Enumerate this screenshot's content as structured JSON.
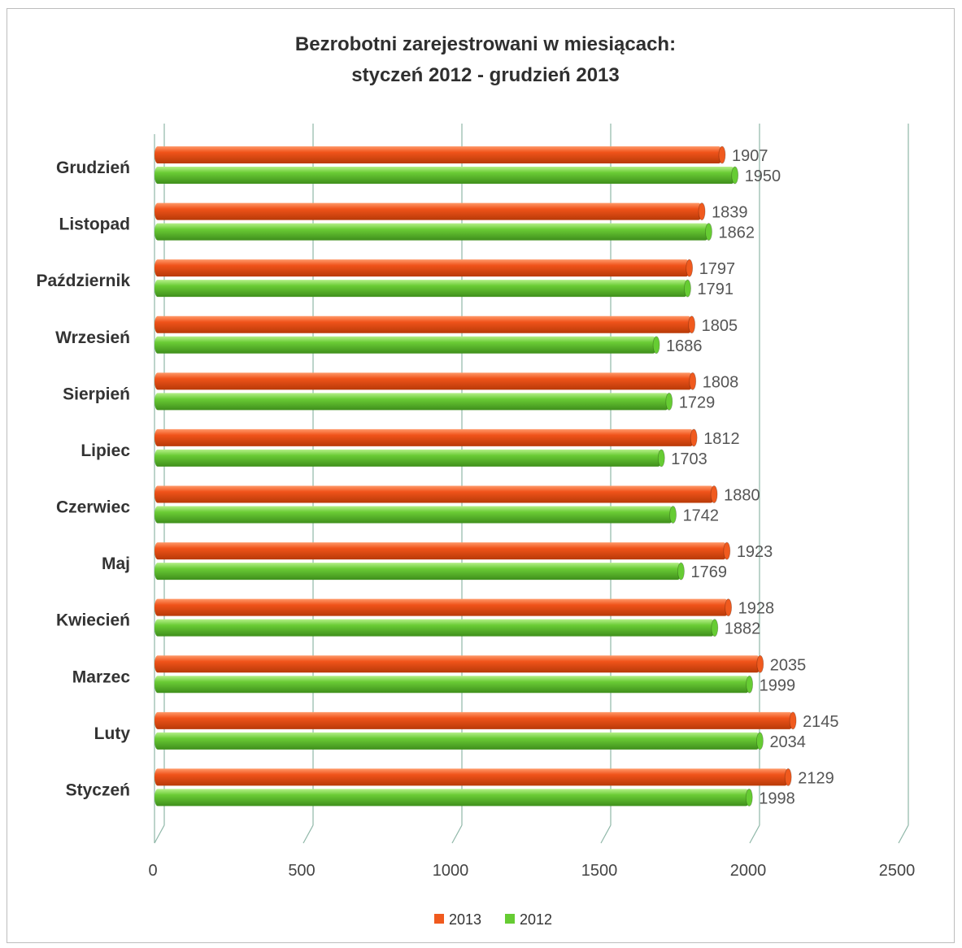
{
  "chart_data": {
    "type": "bar",
    "orientation": "horizontal",
    "title": "Bezrobotni zarejestrowani w miesiącach:",
    "subtitle": "styczeń 2012 - grudzień 2013",
    "categories": [
      "Grudzień",
      "Listopad",
      "Październik",
      "Wrzesień",
      "Sierpień",
      "Lipiec",
      "Czerwiec",
      "Maj",
      "Kwiecień",
      "Marzec",
      "Luty",
      "Styczeń"
    ],
    "series": [
      {
        "name": "2013",
        "color": "#f05a1e",
        "values": [
          1907,
          1839,
          1797,
          1805,
          1808,
          1812,
          1880,
          1923,
          1928,
          2035,
          2145,
          2129
        ]
      },
      {
        "name": "2012",
        "color": "#66cc33",
        "values": [
          1950,
          1862,
          1791,
          1686,
          1729,
          1703,
          1742,
          1769,
          1882,
          1999,
          2034,
          1998
        ]
      }
    ],
    "xlim": [
      0,
      2500
    ],
    "x_ticks": [
      "0",
      "500",
      "1000",
      "1500",
      "2000",
      "2500"
    ],
    "grid": true,
    "legend_position": "bottom"
  }
}
